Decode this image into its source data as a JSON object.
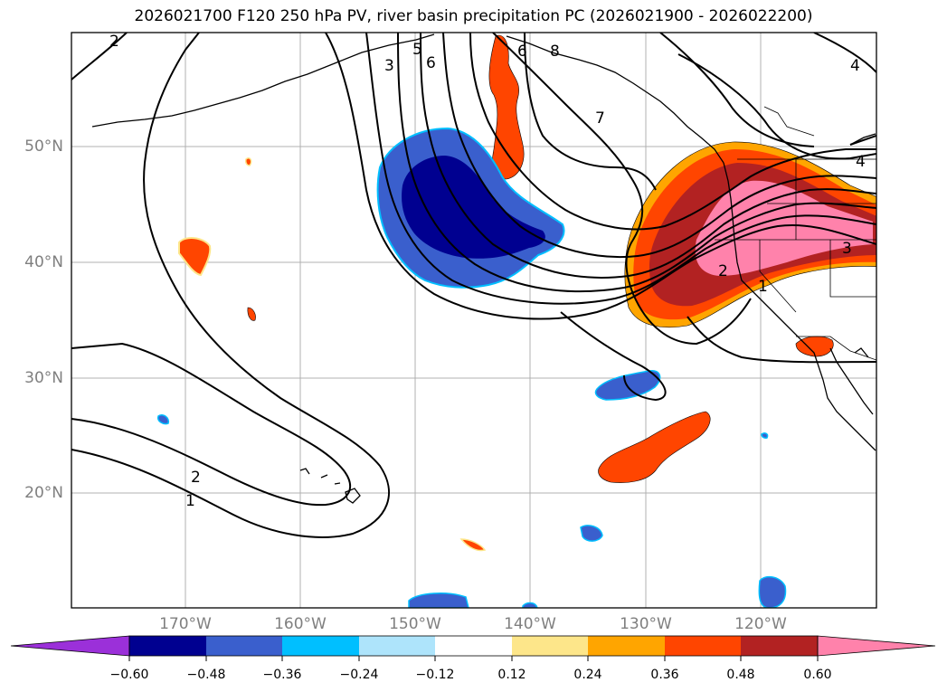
{
  "title": "2026021700 F120 250 hPa PV, river basin precipitation PC (2026021900 - 2026022200)",
  "latitude_labels": [
    "50°N",
    "40°N",
    "30°N",
    "20°N"
  ],
  "longitude_labels": [
    "170°W",
    "160°W",
    "150°W",
    "140°W",
    "130°W",
    "120°W"
  ],
  "contour_labels": [
    "2",
    "3",
    "5",
    "6",
    "6",
    "8",
    "7",
    "4",
    "4",
    "3",
    "2",
    "1",
    "2",
    "1"
  ],
  "colorbar": {
    "ticks": [
      "−0.60",
      "−0.48",
      "−0.36",
      "−0.24",
      "−0.12",
      "0.12",
      "0.24",
      "0.36",
      "0.48",
      "0.60"
    ],
    "colors": [
      "#9b30d9",
      "#000090",
      "#3a5fcd",
      "#00bfff",
      "#aee4fb",
      "#ffffff",
      "#fde68a",
      "#ffa500",
      "#ff4500",
      "#b22222",
      "#ff82ab"
    ]
  },
  "colors": {
    "grid": "#b0b0b0",
    "contour": "#000000",
    "coast": "#000000",
    "label_gray": "#7f7f7f"
  }
}
